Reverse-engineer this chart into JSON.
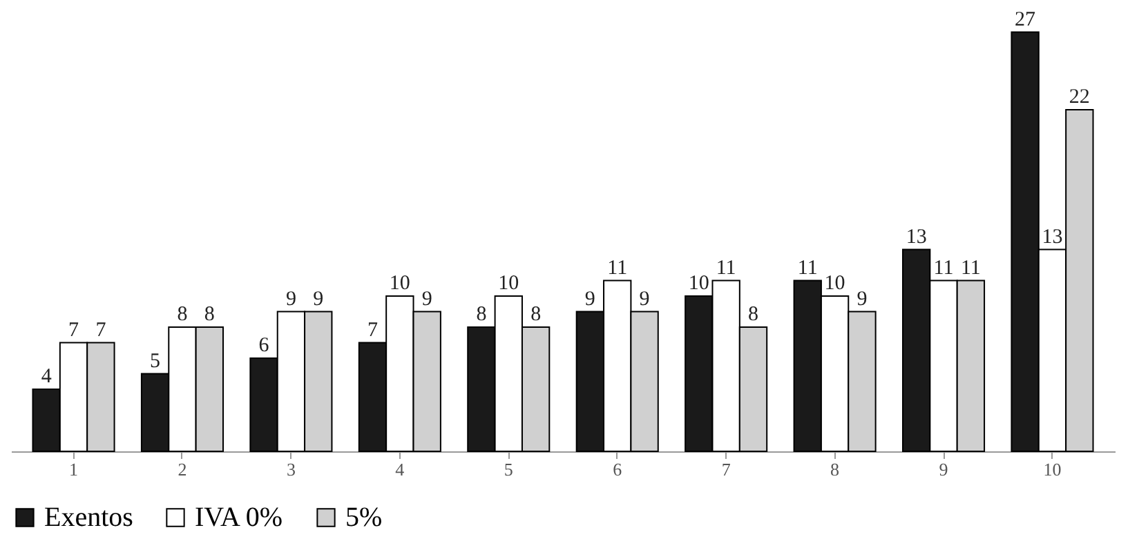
{
  "chart_data": {
    "type": "bar",
    "categories": [
      "1",
      "2",
      "3",
      "4",
      "5",
      "6",
      "7",
      "8",
      "9",
      "10"
    ],
    "series": [
      {
        "name": "Exentos",
        "color": "#1a1a1a",
        "values": [
          4,
          5,
          6,
          7,
          8,
          9,
          10,
          11,
          13,
          27
        ]
      },
      {
        "name": "IVA 0%",
        "color": "#ffffff",
        "values": [
          7,
          8,
          9,
          10,
          10,
          11,
          11,
          10,
          11,
          13
        ]
      },
      {
        "name": "5%",
        "color": "#d0d0d0",
        "values": [
          7,
          8,
          9,
          9,
          8,
          9,
          8,
          9,
          11,
          22
        ]
      }
    ],
    "data_labels": true,
    "legend": "bottom",
    "tick_labels": "x",
    "grid": false
  }
}
